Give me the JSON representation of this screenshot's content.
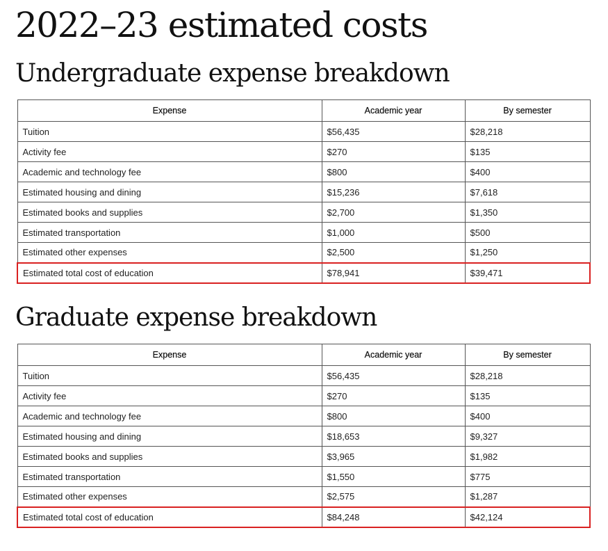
{
  "page": {
    "title": "2022–23 estimated costs"
  },
  "columns": {
    "expense": "Expense",
    "academic_year": "Academic year",
    "by_semester": "By semester"
  },
  "colors": {
    "highlight": "#d92121",
    "border": "#555555"
  },
  "undergraduate": {
    "title": "Undergraduate expense breakdown",
    "rows": [
      {
        "expense": "Tuition",
        "academic_year": "$56,435",
        "by_semester": "$28,218"
      },
      {
        "expense": "Activity fee",
        "academic_year": "$270",
        "by_semester": "$135"
      },
      {
        "expense": "Academic and technology fee",
        "academic_year": "$800",
        "by_semester": "$400"
      },
      {
        "expense": "Estimated housing and dining",
        "academic_year": "$15,236",
        "by_semester": "$7,618"
      },
      {
        "expense": "Estimated books and supplies",
        "academic_year": "$2,700",
        "by_semester": "$1,350"
      },
      {
        "expense": "Estimated transportation",
        "academic_year": "$1,000",
        "by_semester": "$500"
      },
      {
        "expense": "Estimated other expenses",
        "academic_year": "$2,500",
        "by_semester": "$1,250"
      }
    ],
    "total": {
      "expense": "Estimated total cost of education",
      "academic_year": "$78,941",
      "by_semester": "$39,471"
    }
  },
  "graduate": {
    "title": "Graduate expense breakdown",
    "rows": [
      {
        "expense": "Tuition",
        "academic_year": "$56,435",
        "by_semester": "$28,218"
      },
      {
        "expense": "Activity fee",
        "academic_year": "$270",
        "by_semester": "$135"
      },
      {
        "expense": "Academic and technology fee",
        "academic_year": "$800",
        "by_semester": "$400"
      },
      {
        "expense": "Estimated housing and dining",
        "academic_year": "$18,653",
        "by_semester": "$9,327"
      },
      {
        "expense": "Estimated books and supplies",
        "academic_year": "$3,965",
        "by_semester": "$1,982"
      },
      {
        "expense": "Estimated transportation",
        "academic_year": "$1,550",
        "by_semester": "$775"
      },
      {
        "expense": "Estimated other expenses",
        "academic_year": "$2,575",
        "by_semester": "$1,287"
      }
    ],
    "total": {
      "expense": "Estimated total cost of education",
      "academic_year": "$84,248",
      "by_semester": "$42,124"
    }
  }
}
